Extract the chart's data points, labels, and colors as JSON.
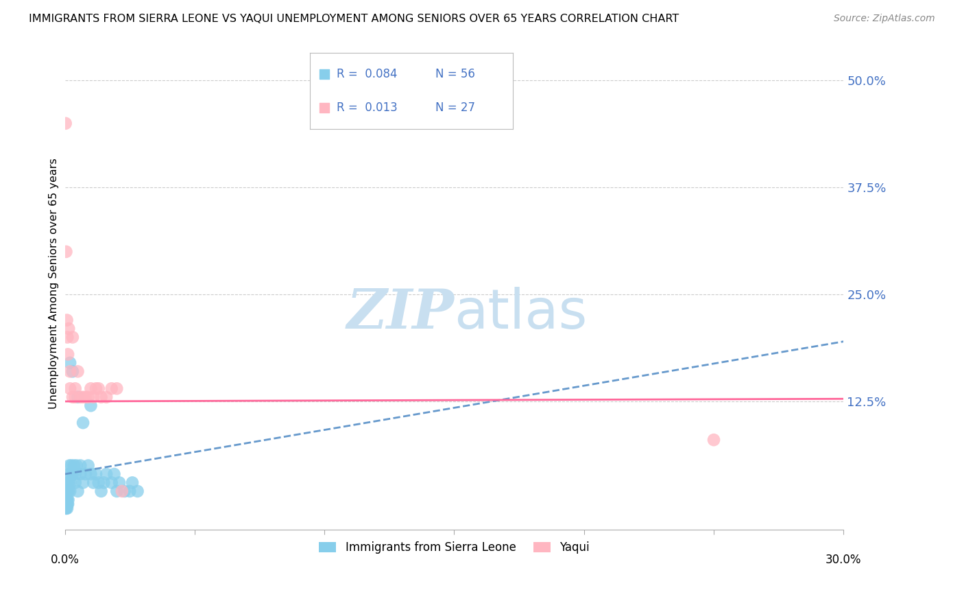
{
  "title": "IMMIGRANTS FROM SIERRA LEONE VS YAQUI UNEMPLOYMENT AMONG SENIORS OVER 65 YEARS CORRELATION CHART",
  "source": "Source: ZipAtlas.com",
  "ylabel": "Unemployment Among Seniors over 65 years",
  "ytick_labels": [
    "50.0%",
    "37.5%",
    "25.0%",
    "12.5%"
  ],
  "ytick_values": [
    0.5,
    0.375,
    0.25,
    0.125
  ],
  "xmin": 0.0,
  "xmax": 0.3,
  "ymin": -0.025,
  "ymax": 0.55,
  "legend_R1": "R =  0.084",
  "legend_N1": "N = 56",
  "legend_R2": "R =  0.013",
  "legend_N2": "N = 27",
  "series1_color": "#87CEEB",
  "series2_color": "#FFB6C1",
  "trendline1_color": "#6699CC",
  "trendline2_color": "#FF6699",
  "watermark_zip_color": "#C8DFF0",
  "watermark_atlas_color": "#C8DFF0",
  "series1_name": "Immigrants from Sierra Leone",
  "series2_name": "Yaqui",
  "blue_x": [
    0.0002,
    0.0003,
    0.0004,
    0.0004,
    0.0005,
    0.0006,
    0.0006,
    0.0007,
    0.0008,
    0.0008,
    0.0009,
    0.001,
    0.001,
    0.001,
    0.001,
    0.0012,
    0.0013,
    0.0014,
    0.0015,
    0.0016,
    0.0018,
    0.002,
    0.002,
    0.0022,
    0.0024,
    0.0025,
    0.003,
    0.003,
    0.0035,
    0.004,
    0.004,
    0.0045,
    0.005,
    0.005,
    0.006,
    0.006,
    0.007,
    0.007,
    0.008,
    0.009,
    0.01,
    0.01,
    0.011,
    0.012,
    0.013,
    0.014,
    0.015,
    0.016,
    0.018,
    0.019,
    0.02,
    0.021,
    0.023,
    0.025,
    0.026,
    0.028
  ],
  "blue_y": [
    0.02,
    0.01,
    0.005,
    0.0,
    0.0,
    0.005,
    0.01,
    0.02,
    0.01,
    0.005,
    0.0,
    0.005,
    0.01,
    0.02,
    0.03,
    0.005,
    0.01,
    0.02,
    0.03,
    0.04,
    0.05,
    0.02,
    0.17,
    0.03,
    0.04,
    0.05,
    0.16,
    0.04,
    0.05,
    0.03,
    0.04,
    0.05,
    0.02,
    0.13,
    0.04,
    0.05,
    0.03,
    0.1,
    0.04,
    0.05,
    0.04,
    0.12,
    0.03,
    0.04,
    0.03,
    0.02,
    0.03,
    0.04,
    0.03,
    0.04,
    0.02,
    0.03,
    0.02,
    0.02,
    0.03,
    0.02
  ],
  "pink_x": [
    0.0003,
    0.0005,
    0.0008,
    0.001,
    0.0012,
    0.0015,
    0.002,
    0.002,
    0.003,
    0.003,
    0.004,
    0.004,
    0.005,
    0.006,
    0.007,
    0.008,
    0.009,
    0.01,
    0.011,
    0.012,
    0.013,
    0.014,
    0.016,
    0.018,
    0.02,
    0.022,
    0.25
  ],
  "pink_y": [
    0.45,
    0.3,
    0.22,
    0.2,
    0.18,
    0.21,
    0.14,
    0.16,
    0.2,
    0.13,
    0.13,
    0.14,
    0.16,
    0.13,
    0.13,
    0.13,
    0.13,
    0.14,
    0.13,
    0.14,
    0.14,
    0.13,
    0.13,
    0.14,
    0.14,
    0.02,
    0.08
  ],
  "blue_trend_x": [
    0.0,
    0.3
  ],
  "blue_trend_y": [
    0.04,
    0.195
  ],
  "pink_trend_x": [
    0.0,
    0.3
  ],
  "pink_trend_y": [
    0.125,
    0.128
  ]
}
